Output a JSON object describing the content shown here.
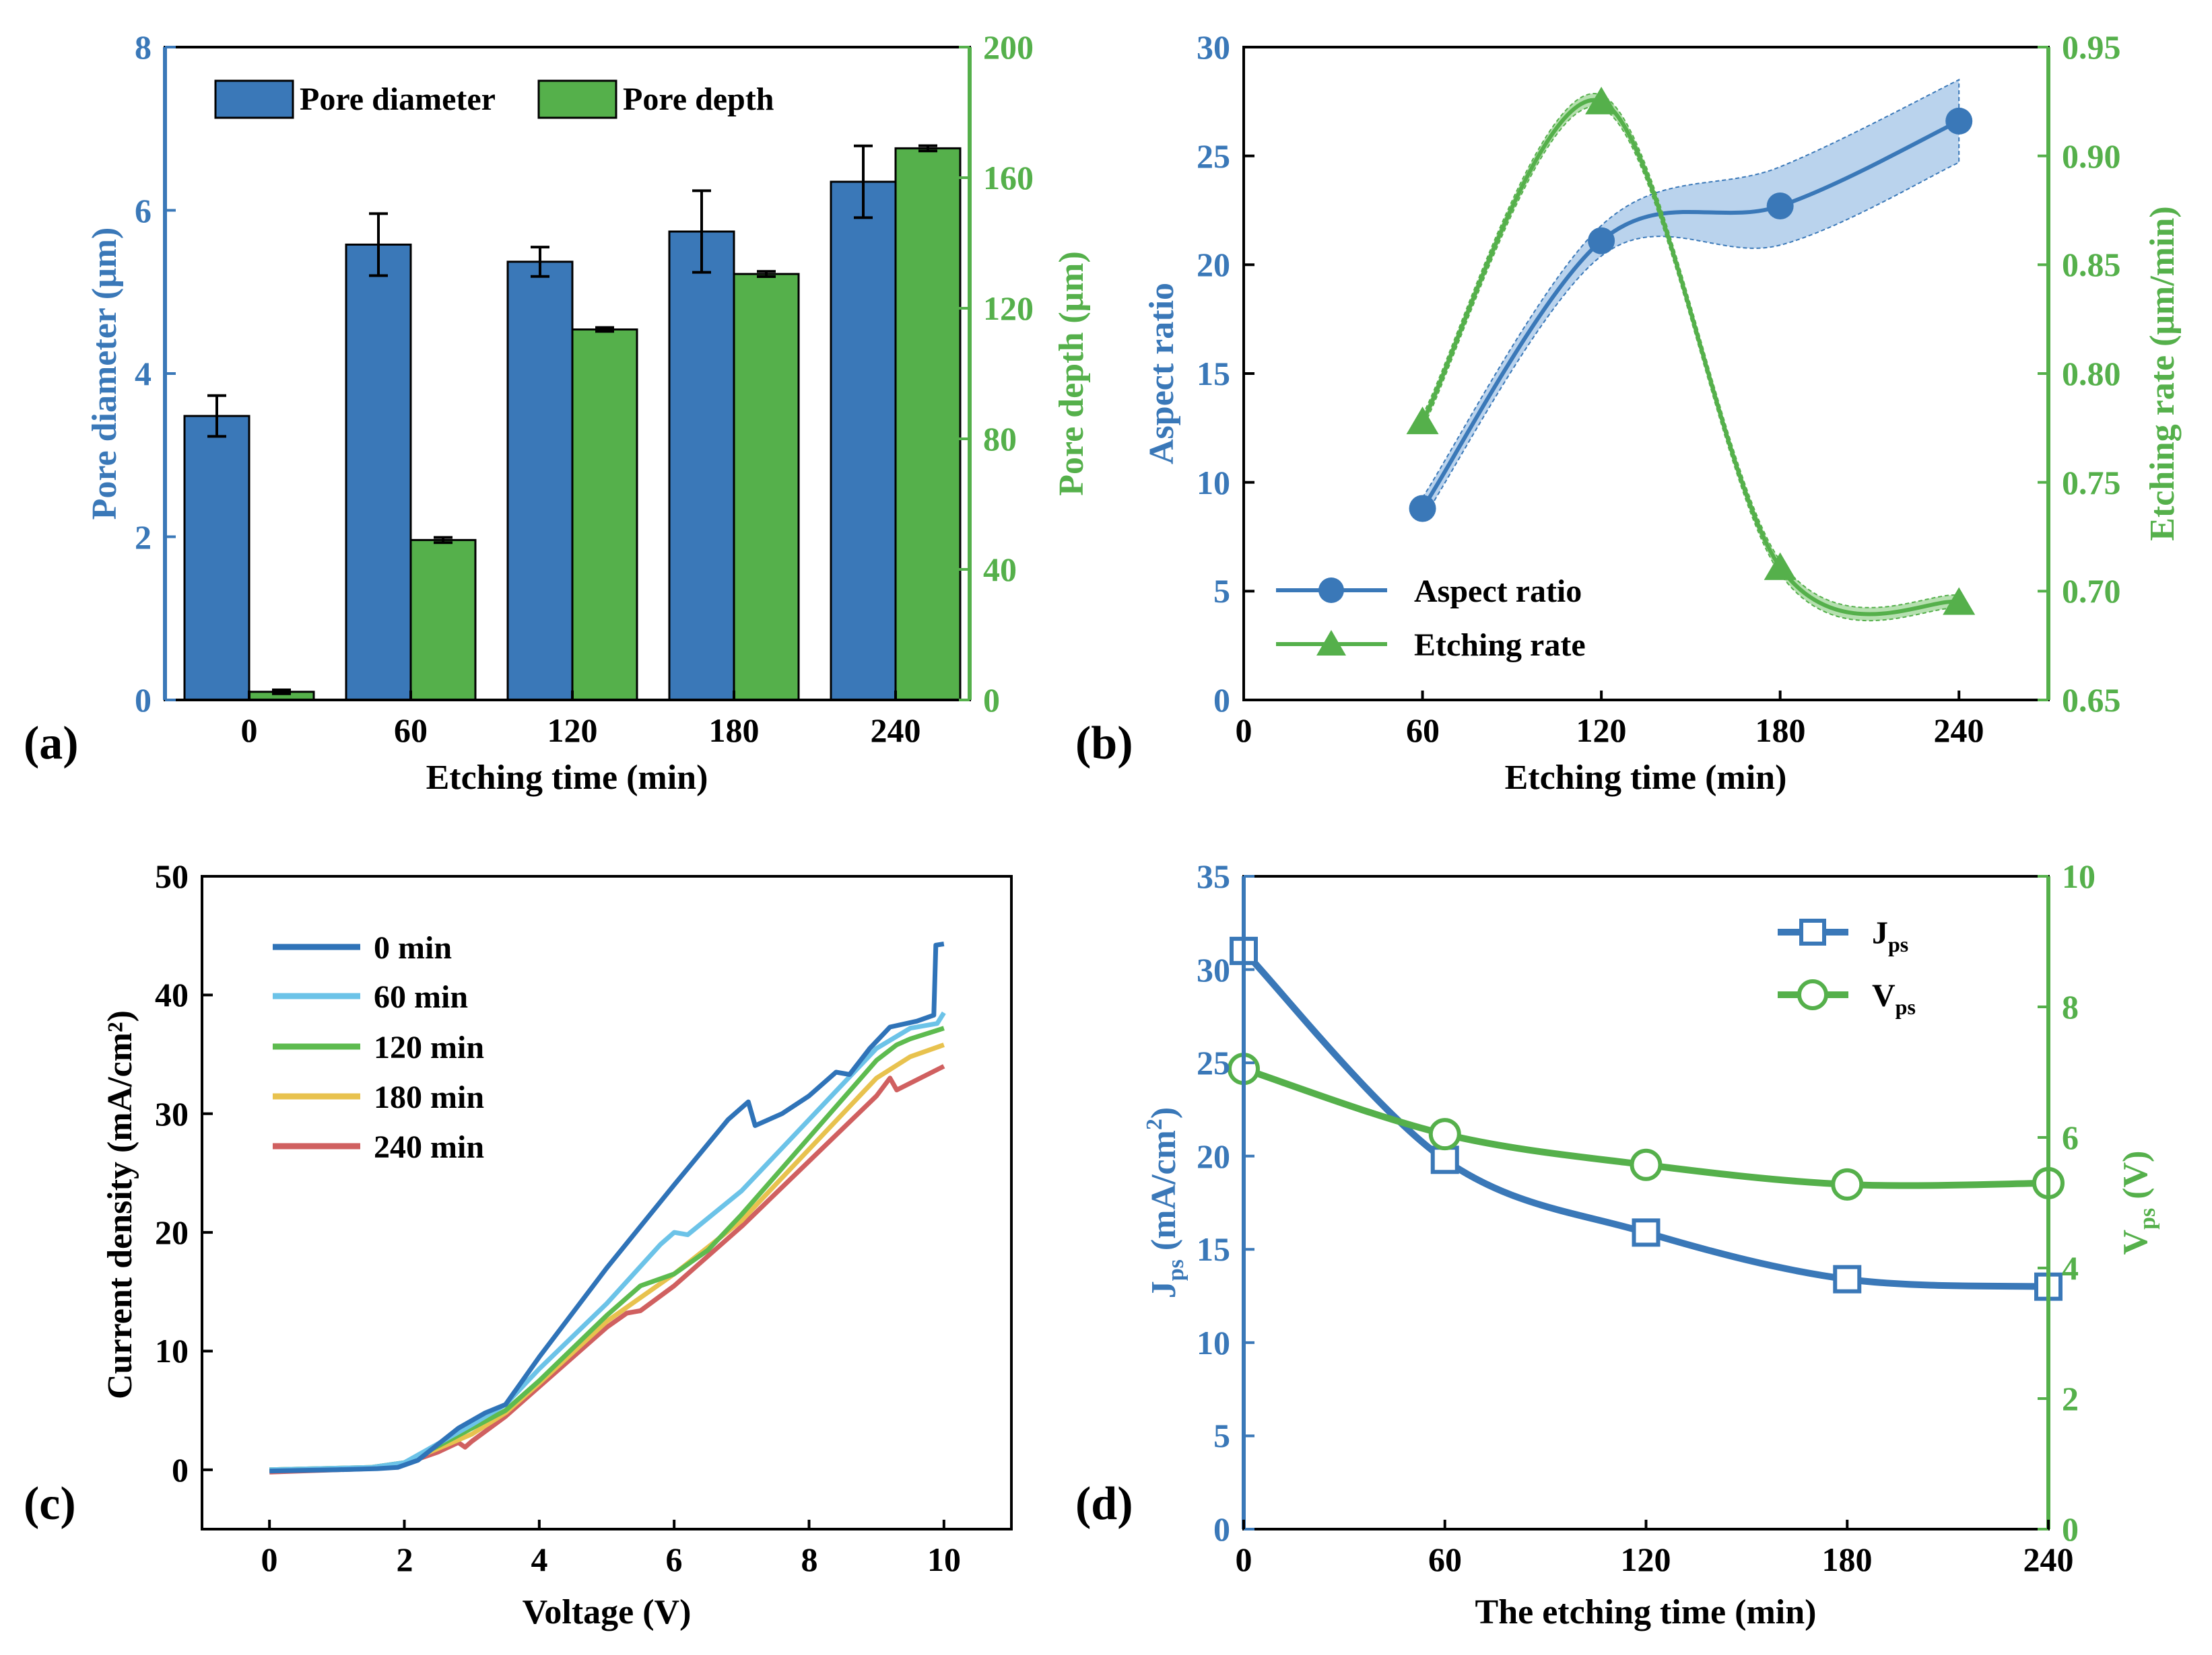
{
  "colors": {
    "blue": "#3a78b8",
    "green": "#55b04b",
    "blue_band": "#aecbea",
    "green_band": "#a9dba2",
    "c0": "#2f73b8",
    "c60": "#6cc3e8",
    "c120": "#5dbb4f",
    "c180": "#e8c24e",
    "c240": "#d06060",
    "axis": "#000000"
  },
  "chart_data": [
    {
      "panel": "(a)",
      "type": "bar",
      "xlabel": "Etching time (min)",
      "ylabel_left": "Pore diameter (μm)",
      "ylabel_right": "Pore depth (μm)",
      "categories": [
        "0",
        "60",
        "120",
        "180",
        "240"
      ],
      "ylim_left": [
        0,
        8
      ],
      "ylim_right": [
        0,
        200
      ],
      "yticks_left": [
        "0",
        "2",
        "4",
        "6",
        "8"
      ],
      "yticks_right": [
        "0",
        "40",
        "80",
        "120",
        "160",
        "200"
      ],
      "series": [
        {
          "name": "Pore diameter",
          "axis": "left",
          "values": [
            3.48,
            5.58,
            5.37,
            5.74,
            6.35
          ],
          "errors": [
            0.25,
            0.38,
            0.18,
            0.5,
            0.44
          ]
        },
        {
          "name": "Pore depth",
          "axis": "right",
          "values": [
            2.5,
            49,
            113.5,
            130.5,
            169
          ],
          "errors": [
            0.6,
            0.8,
            0.6,
            0.8,
            0.8
          ]
        }
      ],
      "legend": [
        "Pore diameter",
        "Pore depth"
      ]
    },
    {
      "panel": "(b)",
      "type": "line",
      "xlabel": "Etching time (min)",
      "ylabel_left": "Aspect ratio",
      "ylabel_right": "Etching rate (μm/min)",
      "xlim": [
        0,
        270
      ],
      "xticks": [
        "0",
        "60",
        "120",
        "180",
        "240"
      ],
      "ylim_left": [
        0,
        30
      ],
      "ylim_right": [
        0.65,
        0.95
      ],
      "yticks_left": [
        "0",
        "5",
        "10",
        "15",
        "20",
        "25",
        "30"
      ],
      "yticks_right": [
        "0.65",
        "0.70",
        "0.75",
        "0.80",
        "0.85",
        "0.90",
        "0.95"
      ],
      "series": [
        {
          "name": "Aspect ratio",
          "axis": "left",
          "x": [
            60,
            120,
            180,
            240
          ],
          "y": [
            8.8,
            21.1,
            22.7,
            26.6
          ],
          "band": [
            0.5,
            0.7,
            1.8,
            1.9
          ]
        },
        {
          "name": "Etching rate",
          "axis": "right",
          "x": [
            60,
            120,
            180,
            240
          ],
          "y": [
            0.778,
            0.925,
            0.711,
            0.695
          ],
          "band": [
            0.003,
            0.003,
            0.003,
            0.003
          ]
        }
      ],
      "legend": [
        "Aspect ratio",
        "Etching rate"
      ]
    },
    {
      "panel": "(c)",
      "type": "line",
      "xlabel": "Voltage (V)",
      "ylabel": "Current density (mA/cm²)",
      "xlim": [
        -1,
        11
      ],
      "ylim": [
        -5,
        50
      ],
      "xticks": [
        "0",
        "2",
        "4",
        "6",
        "8",
        "10"
      ],
      "yticks": [
        "0",
        "10",
        "20",
        "30",
        "40",
        "50"
      ],
      "series": [
        {
          "name": "0 min",
          "x": [
            0,
            1,
            1.6,
            1.9,
            2.2,
            2.8,
            3.2,
            3.5,
            4,
            5,
            6,
            6.8,
            7.1,
            7.2,
            7.6,
            8,
            8.4,
            8.6,
            8.9,
            9.2,
            9.6,
            9.85,
            9.88,
            10
          ],
          "y": [
            -0.1,
            0,
            0.1,
            0.2,
            0.8,
            3.5,
            4.8,
            5.5,
            9.5,
            17,
            24,
            29.5,
            31,
            29,
            30,
            31.5,
            33.5,
            33.3,
            35.5,
            37.3,
            37.8,
            38.3,
            44.2,
            44.3
          ]
        },
        {
          "name": "60 min",
          "x": [
            0,
            1.5,
            2,
            2.5,
            3,
            3.5,
            4,
            5,
            5.8,
            6,
            6.2,
            7,
            8,
            9,
            9.5,
            9.9,
            10
          ],
          "y": [
            0,
            0.2,
            0.6,
            2.2,
            3.8,
            5.5,
            8.5,
            14,
            19,
            20,
            19.8,
            23.5,
            29.5,
            35.5,
            37.2,
            37.6,
            38.5
          ]
        },
        {
          "name": "120 min",
          "x": [
            0,
            1.5,
            2,
            2.5,
            3,
            3.5,
            4,
            5,
            5.5,
            6,
            6.5,
            7,
            8,
            9,
            9.3,
            9.5,
            10
          ],
          "y": [
            0,
            0.2,
            0.6,
            2,
            3.5,
            5,
            7.5,
            13,
            15.5,
            16.5,
            18.5,
            21.5,
            28,
            34.5,
            35.8,
            36.3,
            37.2
          ]
        },
        {
          "name": "180 min",
          "x": [
            0,
            1.5,
            2,
            2.5,
            3,
            3.5,
            4,
            5,
            6,
            7,
            8,
            9,
            9.5,
            10
          ],
          "y": [
            0,
            0.2,
            0.6,
            1.8,
            3,
            4.8,
            7.3,
            12.5,
            16.5,
            21,
            27,
            33,
            34.8,
            35.8
          ]
        },
        {
          "name": "240 min",
          "x": [
            0,
            1.5,
            2,
            2.5,
            2.8,
            2.9,
            3,
            3.5,
            4,
            5,
            5.3,
            5.5,
            6,
            7,
            8,
            9,
            9.2,
            9.3,
            10
          ],
          "y": [
            -0.2,
            0.1,
            0.5,
            1.5,
            2.3,
            1.9,
            2.4,
            4.5,
            7,
            12,
            13.2,
            13.4,
            15.5,
            20.5,
            26,
            31.5,
            33,
            32,
            34
          ]
        }
      ],
      "legend": [
        "0 min",
        "60 min",
        "120 min",
        "180 min",
        "240 min"
      ]
    },
    {
      "panel": "(d)",
      "type": "line",
      "xlabel": "The etching time (min)",
      "ylabel_left": "Jps (mA/cm²)",
      "ylabel_right": "Vps (V)",
      "xlim": [
        0,
        240
      ],
      "xticks": [
        "0",
        "60",
        "120",
        "180",
        "240"
      ],
      "ylim_left": [
        0,
        35
      ],
      "ylim_right": [
        0,
        10
      ],
      "yticks_left": [
        "0",
        "5",
        "10",
        "15",
        "20",
        "25",
        "30",
        "35"
      ],
      "yticks_right": [
        "0",
        "2",
        "4",
        "6",
        "8",
        "10"
      ],
      "series": [
        {
          "name": "Jps",
          "axis": "left",
          "marker": "open-square",
          "x": [
            0,
            60,
            120,
            180,
            240
          ],
          "y": [
            31,
            19.8,
            15.9,
            13.4,
            13
          ]
        },
        {
          "name": "Vps",
          "axis": "right",
          "marker": "open-circle",
          "x": [
            0,
            60,
            120,
            180,
            240
          ],
          "y": [
            7.05,
            6.05,
            5.58,
            5.28,
            5.3
          ]
        }
      ],
      "legend": [
        "Jps",
        "Vps"
      ]
    }
  ]
}
